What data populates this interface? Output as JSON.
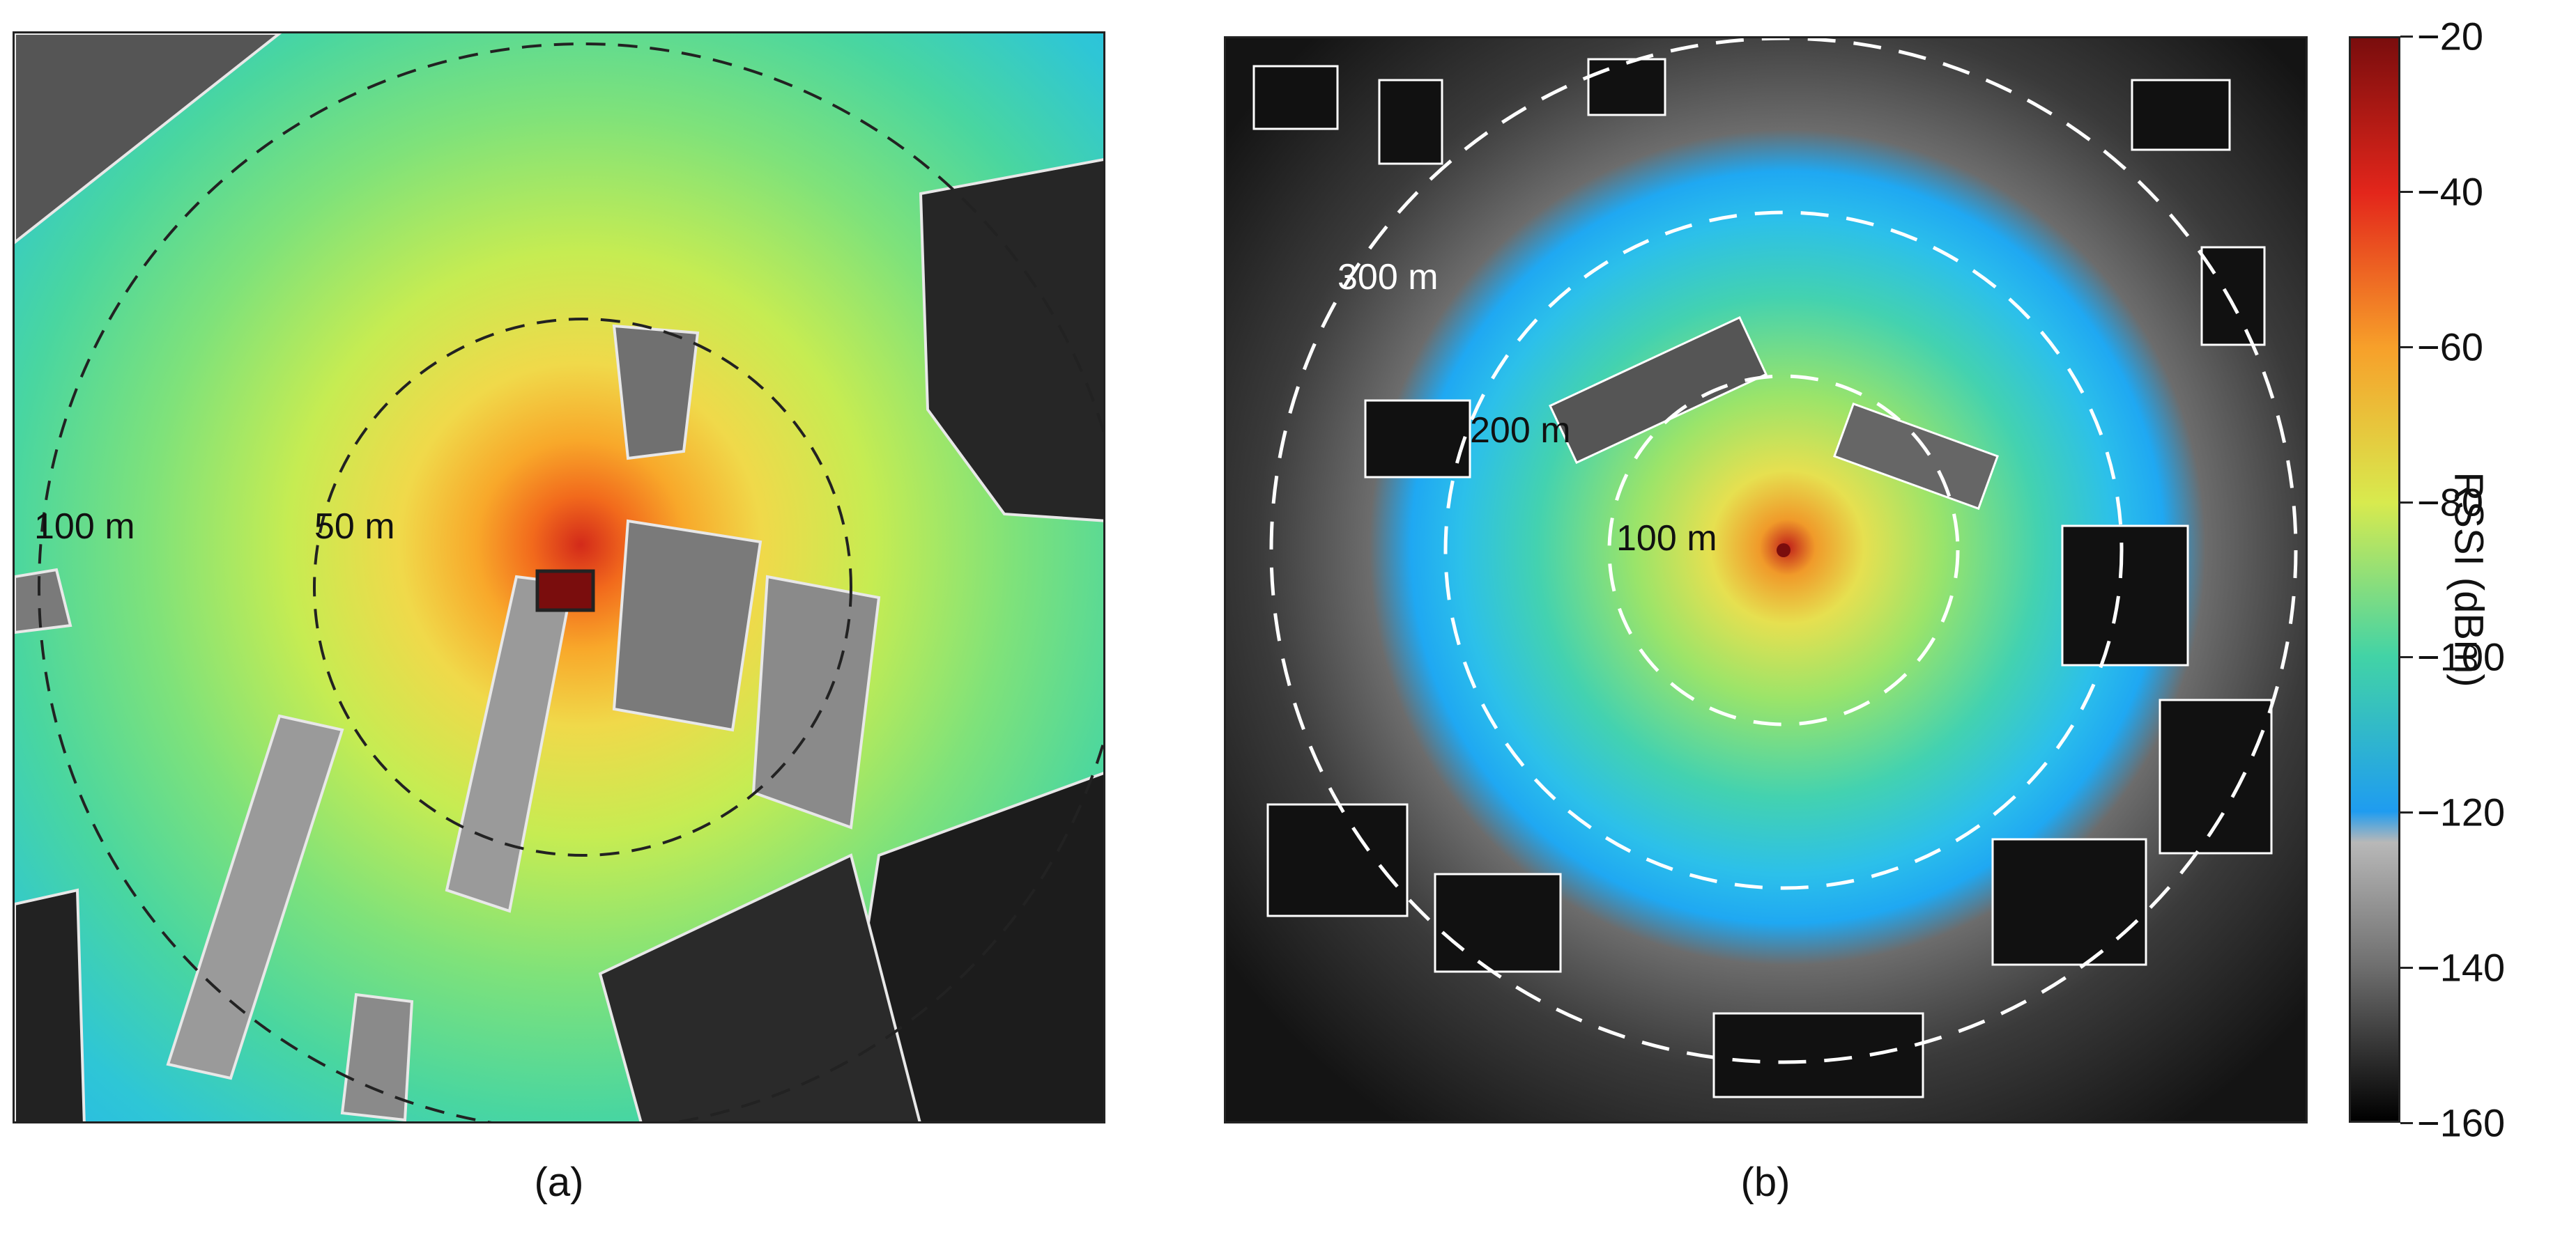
{
  "chart_data": [
    {
      "type": "heatmap",
      "panel_label": "(a)",
      "ring_labels": [
        "100 m",
        "50 m"
      ],
      "ring_radii_m": [
        100,
        50
      ],
      "ring_color": "#222222"
    },
    {
      "type": "heatmap",
      "panel_label": "(b)",
      "ring_labels": [
        "300 m",
        "200 m",
        "100 m"
      ],
      "ring_radii_m": [
        300,
        200,
        100
      ],
      "ring_color": "#ffffff"
    }
  ],
  "colorbar": {
    "label": "RSSI (dBm)",
    "range": [
      -160,
      -20
    ],
    "ticks": [
      -20,
      -40,
      -60,
      -80,
      -100,
      -120,
      -140,
      -160
    ],
    "stops": [
      {
        "value": -20,
        "color": "#7a0d0d"
      },
      {
        "value": -40,
        "color": "#e3261b"
      },
      {
        "value": -60,
        "color": "#f7a02a"
      },
      {
        "value": -80,
        "color": "#d8ea4e"
      },
      {
        "value": -100,
        "color": "#42d3a6"
      },
      {
        "value": -120,
        "color": "#1f9cf0"
      },
      {
        "value": -124,
        "color": "#b8b8b8"
      },
      {
        "value": -140,
        "color": "#6f6f6f"
      },
      {
        "value": -160,
        "color": "#000000"
      }
    ]
  }
}
